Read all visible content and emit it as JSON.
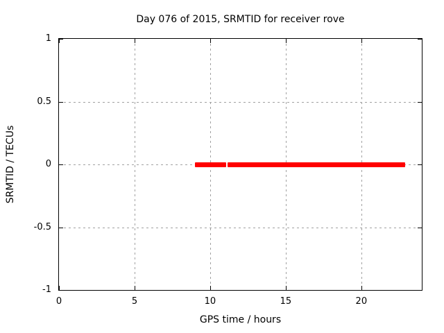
{
  "title": "Day 076 of 2015, SRMTID for receiver rove",
  "colors": {
    "background": "#ffffff",
    "axis": "#000000",
    "grid": "#a0a0a0",
    "line": "#ff0000"
  },
  "chart_data": {
    "type": "line",
    "title": "Day 076 of 2015, SRMTID for receiver rove",
    "xlabel": "GPS time / hours",
    "ylabel": "SRMTID / TECUs",
    "xlim": [
      0,
      24
    ],
    "ylim": [
      -1,
      1
    ],
    "xticks": [
      0,
      5,
      10,
      15,
      20
    ],
    "xtick_labels": [
      "0",
      "5",
      "10",
      "15",
      "20"
    ],
    "yticks": [
      1,
      0.5,
      0,
      -0.5,
      -1
    ],
    "ytick_labels": [
      "1",
      "0.5",
      "0",
      "-0.5",
      "-1"
    ],
    "grid": true,
    "grid_style": "dashed",
    "legend": "none",
    "series": [
      {
        "name": "SRMTID",
        "color": "#ff0000",
        "y": 0,
        "note": "thick flat line at y=0 with a small break near x=11.1",
        "segments_x": [
          [
            9.0,
            11.07
          ],
          [
            11.17,
            22.9
          ]
        ]
      }
    ]
  }
}
